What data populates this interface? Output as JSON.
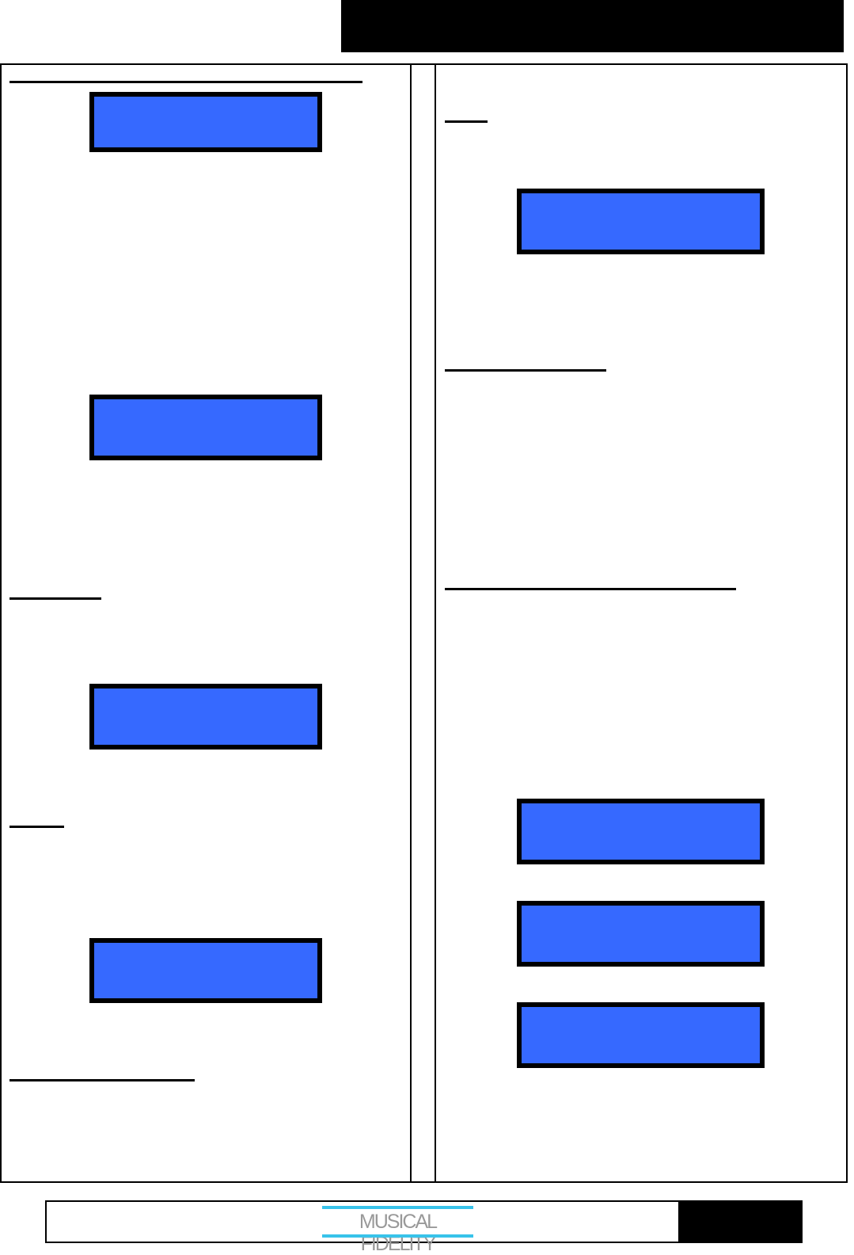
{
  "header": {
    "bar_color": "#000000"
  },
  "display_color": "#3669ff",
  "footer": {
    "logo_text": "MUSICAL FIDELITY",
    "logo_accent": "#38c3ea"
  }
}
